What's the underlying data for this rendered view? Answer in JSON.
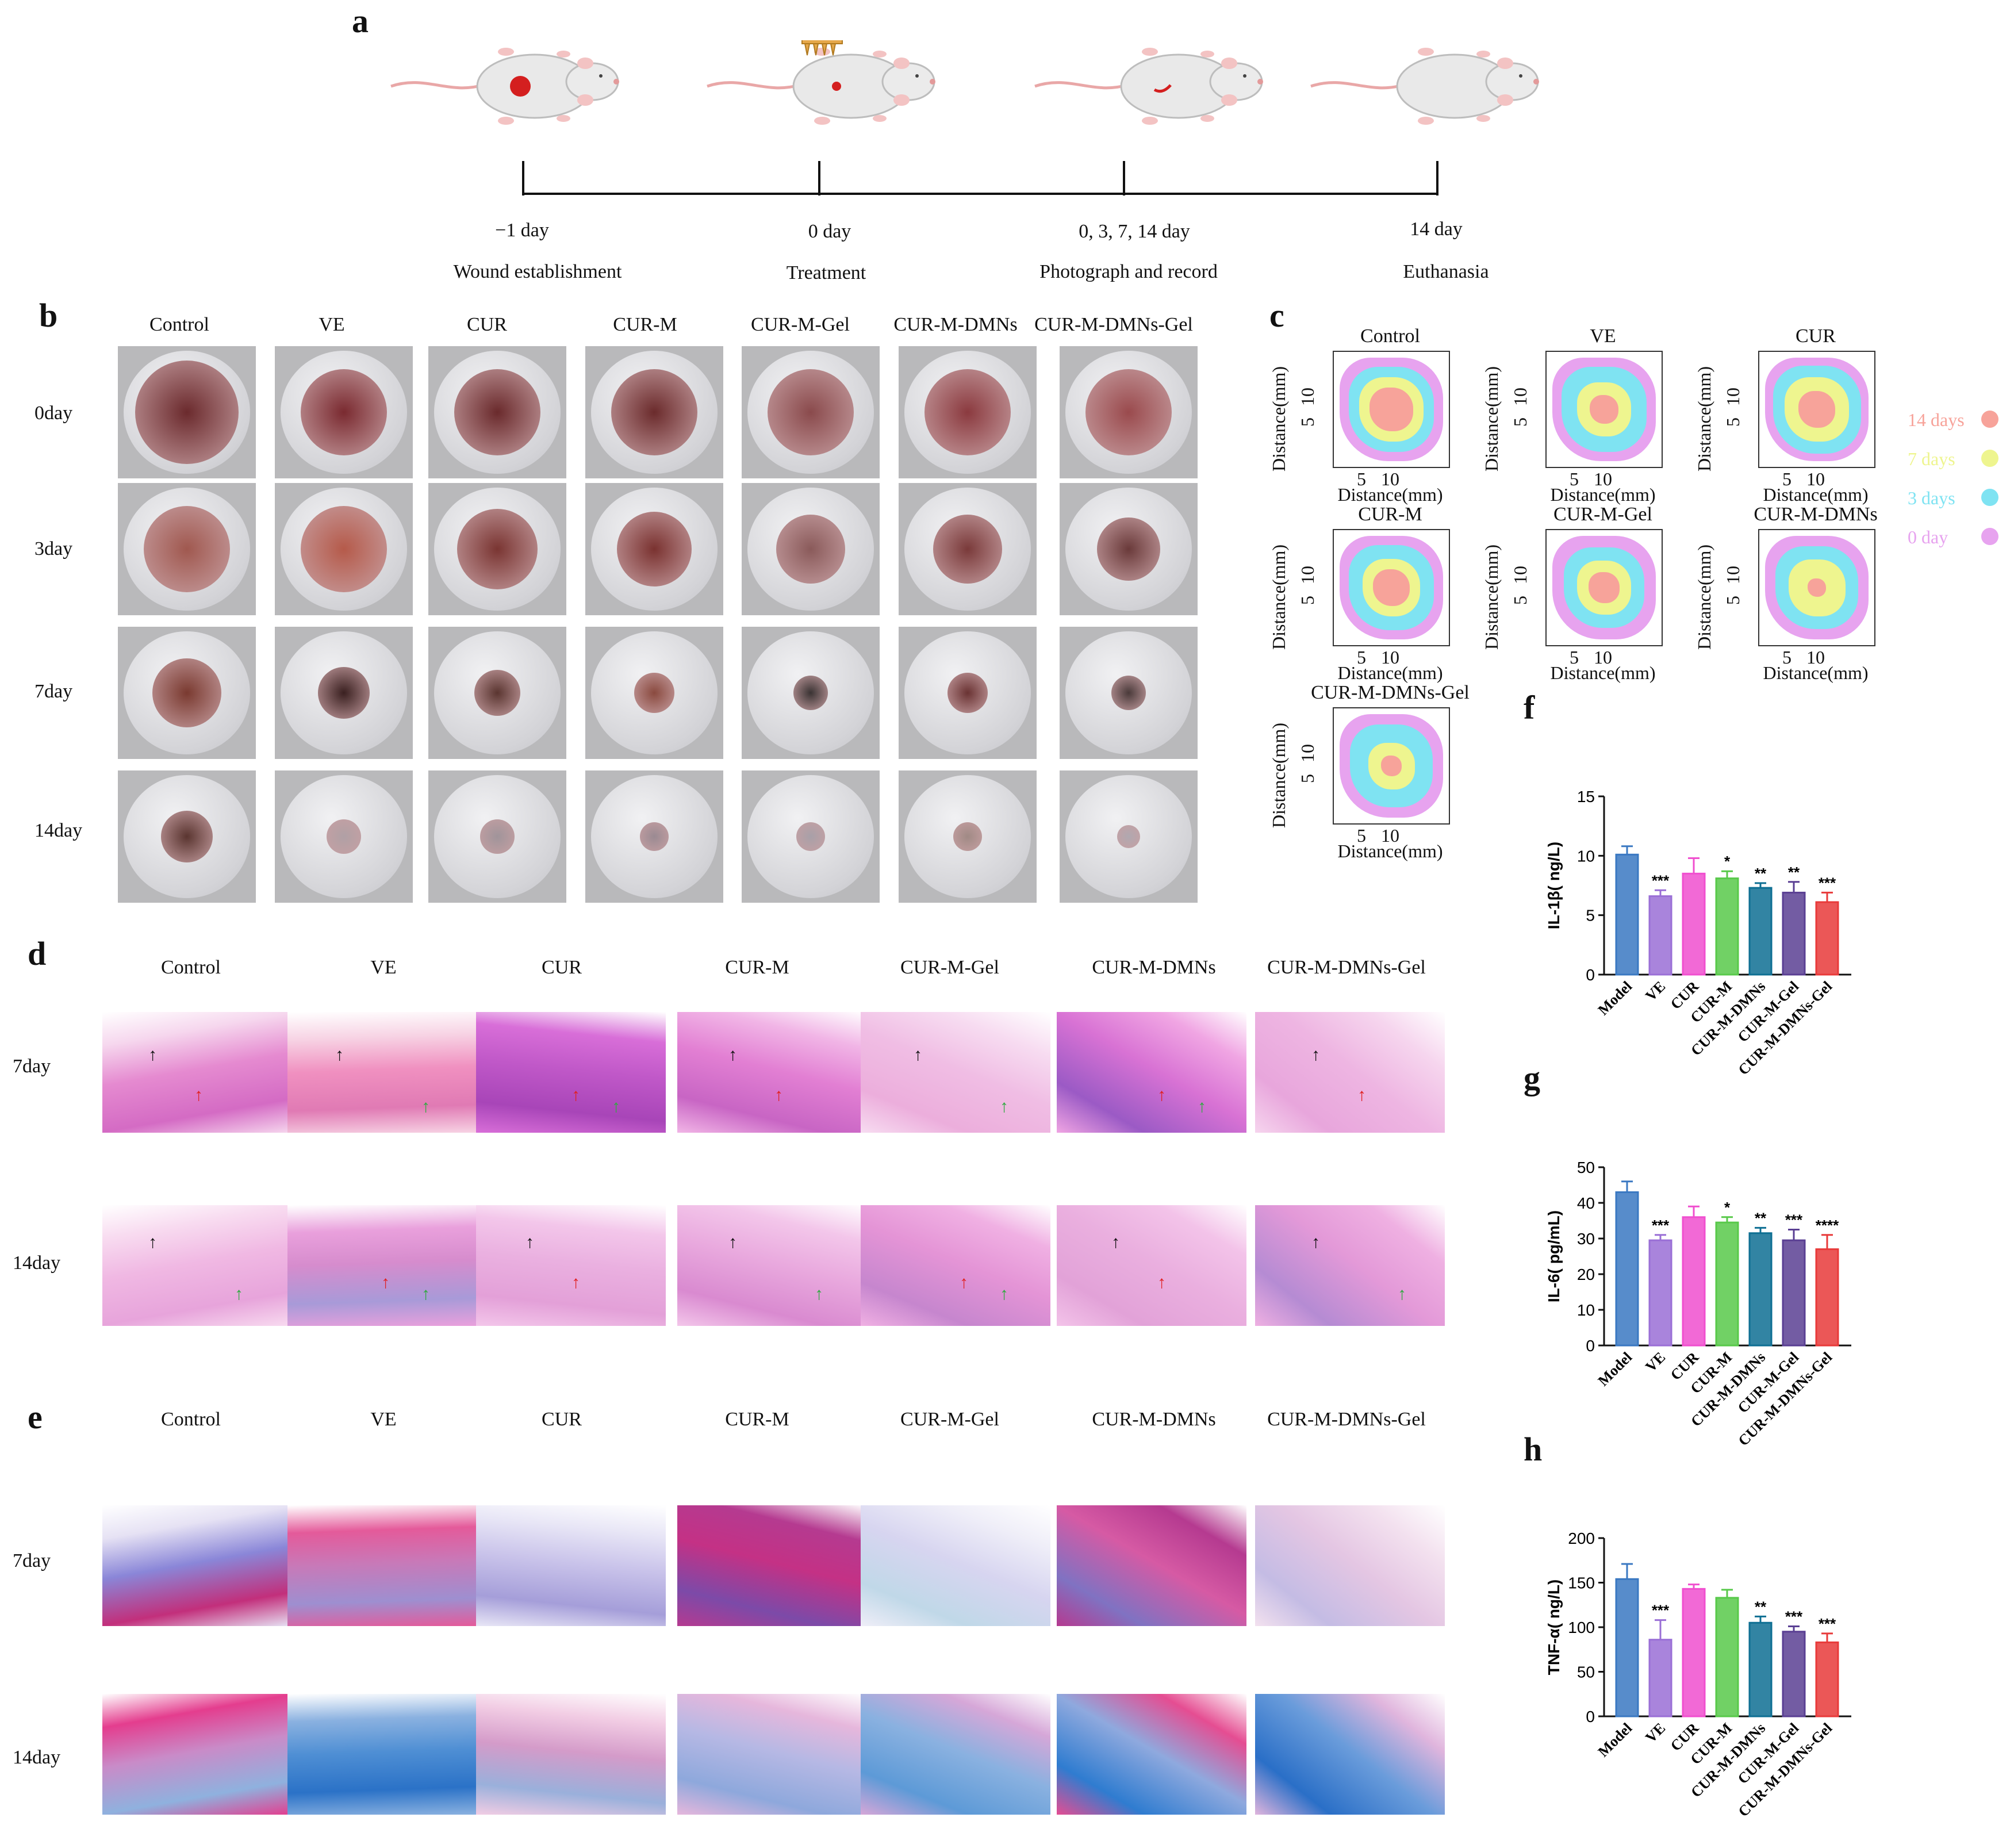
{
  "panel_labels": {
    "a": "a",
    "b": "b",
    "c": "c",
    "d": "d",
    "e": "e",
    "f": "f",
    "g": "g",
    "h": "h"
  },
  "timeline": {
    "points": [
      {
        "day": "−1 day",
        "event": "Wound establishment"
      },
      {
        "day": "0 day",
        "event": "Treatment"
      },
      {
        "day": "0,   3,   7,   14 day",
        "event": "Photograph and record"
      },
      {
        "day": "14 day",
        "event": "Euthanasia"
      }
    ]
  },
  "groups": [
    "Control",
    "VE",
    "CUR",
    "CUR-M",
    "CUR-M-Gel",
    "CUR-M-DMNs",
    "CUR-M-DMNs-Gel"
  ],
  "photo_rows": [
    "0day",
    "3day",
    "7day",
    "14day"
  ],
  "contour": {
    "axis_label": "Distance(mm)",
    "ticks": [
      "5",
      "10"
    ],
    "groups": [
      "Control",
      "VE",
      "CUR",
      "CUR-M",
      "CUR-M-Gel",
      "CUR-M-DMNs",
      "CUR-M-DMNs-Gel"
    ],
    "legend": [
      {
        "label": "14 days",
        "color": "#f7a39a"
      },
      {
        "label": "7 days",
        "color": "#eef58f"
      },
      {
        "label": "3 days",
        "color": "#7fe3f2"
      },
      {
        "label": "0 day",
        "color": "#e7a3ef"
      }
    ]
  },
  "histo_rows": [
    "7day",
    "14day"
  ],
  "colors": {
    "model": "#3a78c2",
    "ve": "#9a6fd6",
    "cur": "#f04fcf",
    "curm": "#58c94a",
    "dmns": "#0e6f93",
    "gel": "#5a3f93",
    "dmnsgel": "#e83a3a"
  },
  "chart_data": [
    {
      "type": "bar",
      "title": "f",
      "ylabel": "IL-1β( ng/L)",
      "ylim": [
        0,
        15
      ],
      "yticks": [
        0,
        5,
        10,
        15
      ],
      "categories": [
        "Model",
        "VE",
        "CUR",
        "CUR-M",
        "CUR-M-DMNs",
        "CUR-M-Gel",
        "CUR-M-DMNs-Gel"
      ],
      "values": [
        10.1,
        6.6,
        8.5,
        8.1,
        7.3,
        6.9,
        6.1
      ],
      "errors": [
        0.7,
        0.5,
        1.3,
        0.6,
        0.4,
        0.9,
        0.8
      ],
      "significance": [
        "",
        "***",
        "",
        "*",
        "**",
        "**",
        "***"
      ]
    },
    {
      "type": "bar",
      "title": "g",
      "ylabel": "IL-6( pg/mL)",
      "ylim": [
        0,
        50
      ],
      "yticks": [
        0,
        10,
        20,
        30,
        40,
        50
      ],
      "categories": [
        "Model",
        "VE",
        "CUR",
        "CUR-M",
        "CUR-M-DMNs",
        "CUR-M-Gel",
        "CUR-M-DMNs-Gel"
      ],
      "values": [
        43,
        29.5,
        36,
        34.5,
        31.5,
        29.5,
        27
      ],
      "errors": [
        3,
        1.5,
        3,
        1.5,
        1.5,
        3,
        4
      ],
      "significance": [
        "",
        "***",
        "",
        "*",
        "**",
        "***",
        "****"
      ]
    },
    {
      "type": "bar",
      "title": "h",
      "ylabel": "TNF-α( ng/L)",
      "ylim": [
        0,
        200
      ],
      "yticks": [
        0,
        50,
        100,
        150,
        200
      ],
      "categories": [
        "Model",
        "VE",
        "CUR",
        "CUR-M",
        "CUR-M-DMNs",
        "CUR-M-Gel",
        "CUR-M-DMNs-Gel"
      ],
      "values": [
        154,
        86,
        143,
        133,
        105,
        95,
        83
      ],
      "errors": [
        17,
        22,
        5,
        9,
        7,
        6,
        10
      ],
      "significance": [
        "",
        "***",
        "",
        "",
        "**",
        "***",
        "***"
      ]
    }
  ]
}
